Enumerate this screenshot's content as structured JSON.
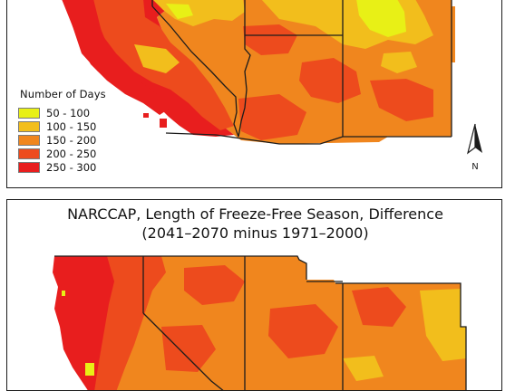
{
  "top_panel": {
    "legend": {
      "title": "Number of Days",
      "entries": [
        {
          "label": "50 - 100",
          "color": "#e8f016"
        },
        {
          "label": "100 - 150",
          "color": "#f2be1c"
        },
        {
          "label": "150 - 200",
          "color": "#f0861e"
        },
        {
          "label": "200 - 250",
          "color": "#ed4b1d"
        },
        {
          "label": "250 - 300",
          "color": "#e81e1e"
        }
      ]
    },
    "north_label": "N"
  },
  "bottom_panel": {
    "title_line1": "NARCCAP, Length of Freeze-Free Season, Difference",
    "title_line2": "(2041–2070 minus 1971–2000)"
  },
  "colors": {
    "yellow": "#e8f016",
    "light_orange": "#f2be1c",
    "orange": "#f0861e",
    "red_orange": "#ed4b1d",
    "red": "#e81e1e",
    "border": "#1c1c1c"
  },
  "icons": [
    "north-arrow-icon"
  ]
}
